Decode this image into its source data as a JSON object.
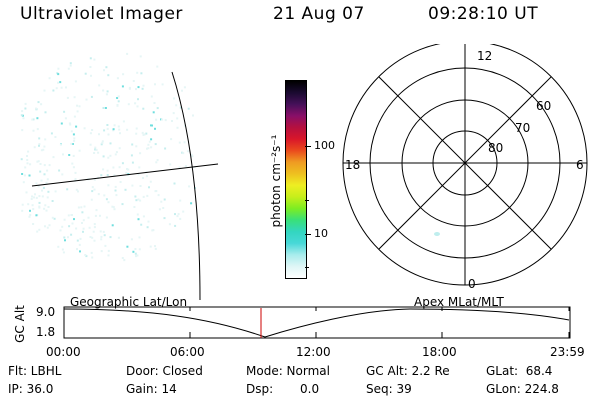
{
  "header": {
    "instrument": "Ultraviolet Imager",
    "date": "21 Aug 07",
    "time": "09:28:10 UT"
  },
  "colorbar": {
    "unit_label": "photon cm⁻²s⁻¹",
    "ticks": [
      "100",
      "10"
    ],
    "colors": [
      "#ffffff",
      "#dff6f6",
      "#a8ecec",
      "#47d8d8",
      "#33d6c0",
      "#39e079",
      "#7ded22",
      "#c6ee1b",
      "#eeee22",
      "#eec020",
      "#ef9b22",
      "#ea4a1d",
      "#d9162a",
      "#b5103f",
      "#880f68",
      "#451059",
      "#1a0a30",
      "#000000"
    ]
  },
  "polar": {
    "mlt_labels": {
      "top": "12",
      "left": "18",
      "right": "6",
      "bottom": "0"
    },
    "lat_labels": [
      "60",
      "70",
      "80"
    ]
  },
  "orbit": {
    "axis_label": "GC Alt",
    "y_ticks": [
      "9.0",
      "1.8"
    ],
    "left_caption": "Geographic Lat/Lon",
    "right_caption": "Apex MLat/MLT",
    "time_ticks": [
      "00:00",
      "06:00",
      "12:00",
      "18:00",
      "23:59"
    ]
  },
  "status": {
    "filter": "Flt: LBHL",
    "ip": "IP: 36.0",
    "door": "Door: Closed",
    "gain": "Gain: 14",
    "mode": "Mode: Normal",
    "dsp_label": "Dsp:",
    "dsp_value": "0.0",
    "gc_alt": "GC Alt: 2.2 Re",
    "seq": "Seq: 39",
    "glat": "GLat:  68.4",
    "glon": "GLon: 224.8"
  }
}
